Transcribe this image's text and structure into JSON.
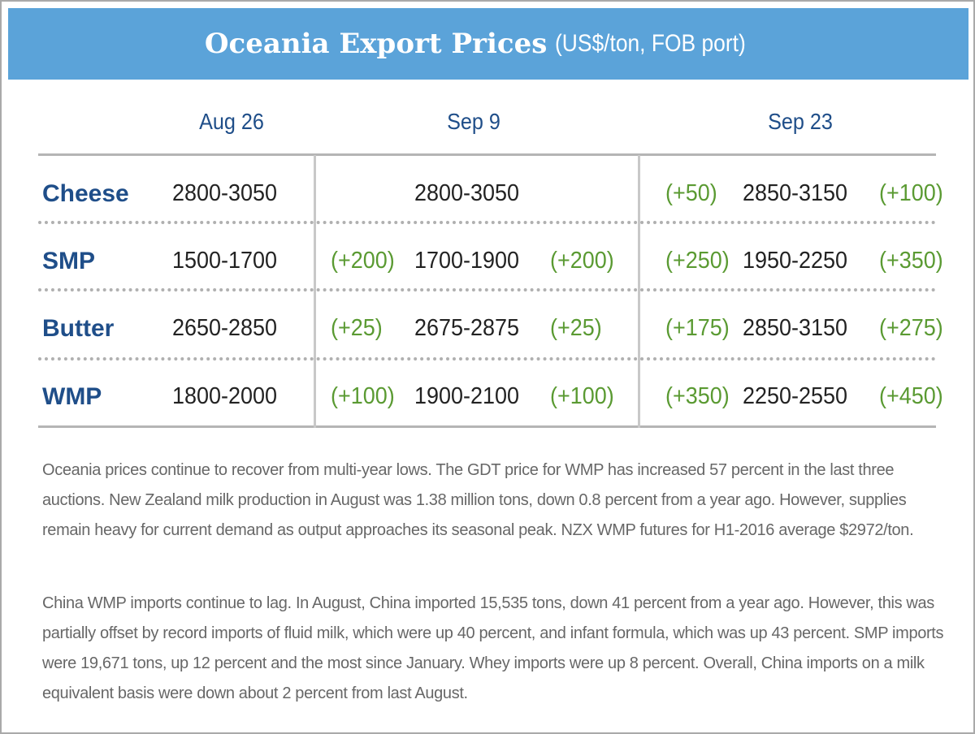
{
  "header": {
    "title": "Oceania Export Prices",
    "subtitle": "(US$/ton, FOB port)"
  },
  "table": {
    "columns": [
      "Aug 26",
      "Sep 9",
      "Sep 23"
    ],
    "rows": [
      {
        "label": "Cheese",
        "aug_26": "2800-3050",
        "sep_9": {
          "range": "2800-3050"
        },
        "sep_23": {
          "change_low": "(+50)",
          "range": "2850-3150",
          "change_high": "(+100)"
        }
      },
      {
        "label": "SMP",
        "aug_26": "1500-1700",
        "sep_9": {
          "change_low": "(+200)",
          "range": "1700-1900",
          "change_high": "(+200)"
        },
        "sep_23": {
          "change_low": "(+250)",
          "range": "1950-2250",
          "change_high": "(+350)"
        }
      },
      {
        "label": "Butter",
        "aug_26": "2650-2850",
        "sep_9": {
          "change_low": "(+25)",
          "range": "2675-2875",
          "change_high": "(+25)"
        },
        "sep_23": {
          "change_low": "(+175)",
          "range": "2850-3150",
          "change_high": "(+275)"
        }
      },
      {
        "label": "WMP",
        "aug_26": "1800-2000",
        "sep_9": {
          "change_low": "(+100)",
          "range": "1900-2100",
          "change_high": "(+100)"
        },
        "sep_23": {
          "change_low": "(+350)",
          "range": "2250-2550",
          "change_high": "(+450)"
        }
      }
    ]
  },
  "paragraphs": [
    "Oceania prices continue to recover from multi-year lows. The GDT price for WMP has increased 57 percent in the last three auctions. New Zealand milk production in August was 1.38 million tons, down 0.8 percent from a year ago. However, supplies remain heavy for current demand as output approaches its seasonal peak. NZX WMP futures for H1-2016 average $2972/ton.",
    "China WMP imports continue to lag. In August, China imported 15,535 tons, down 41 percent from a year ago. However, this was partially offset by record imports of fluid milk, which were up 40 percent, and infant formula, which was up 43 percent. SMP imports were 19,671 tons, up 12 percent and the most since January. Whey imports were up 8 percent. Overall, China imports on a milk equivalent basis were down about 2 percent from last August."
  ]
}
